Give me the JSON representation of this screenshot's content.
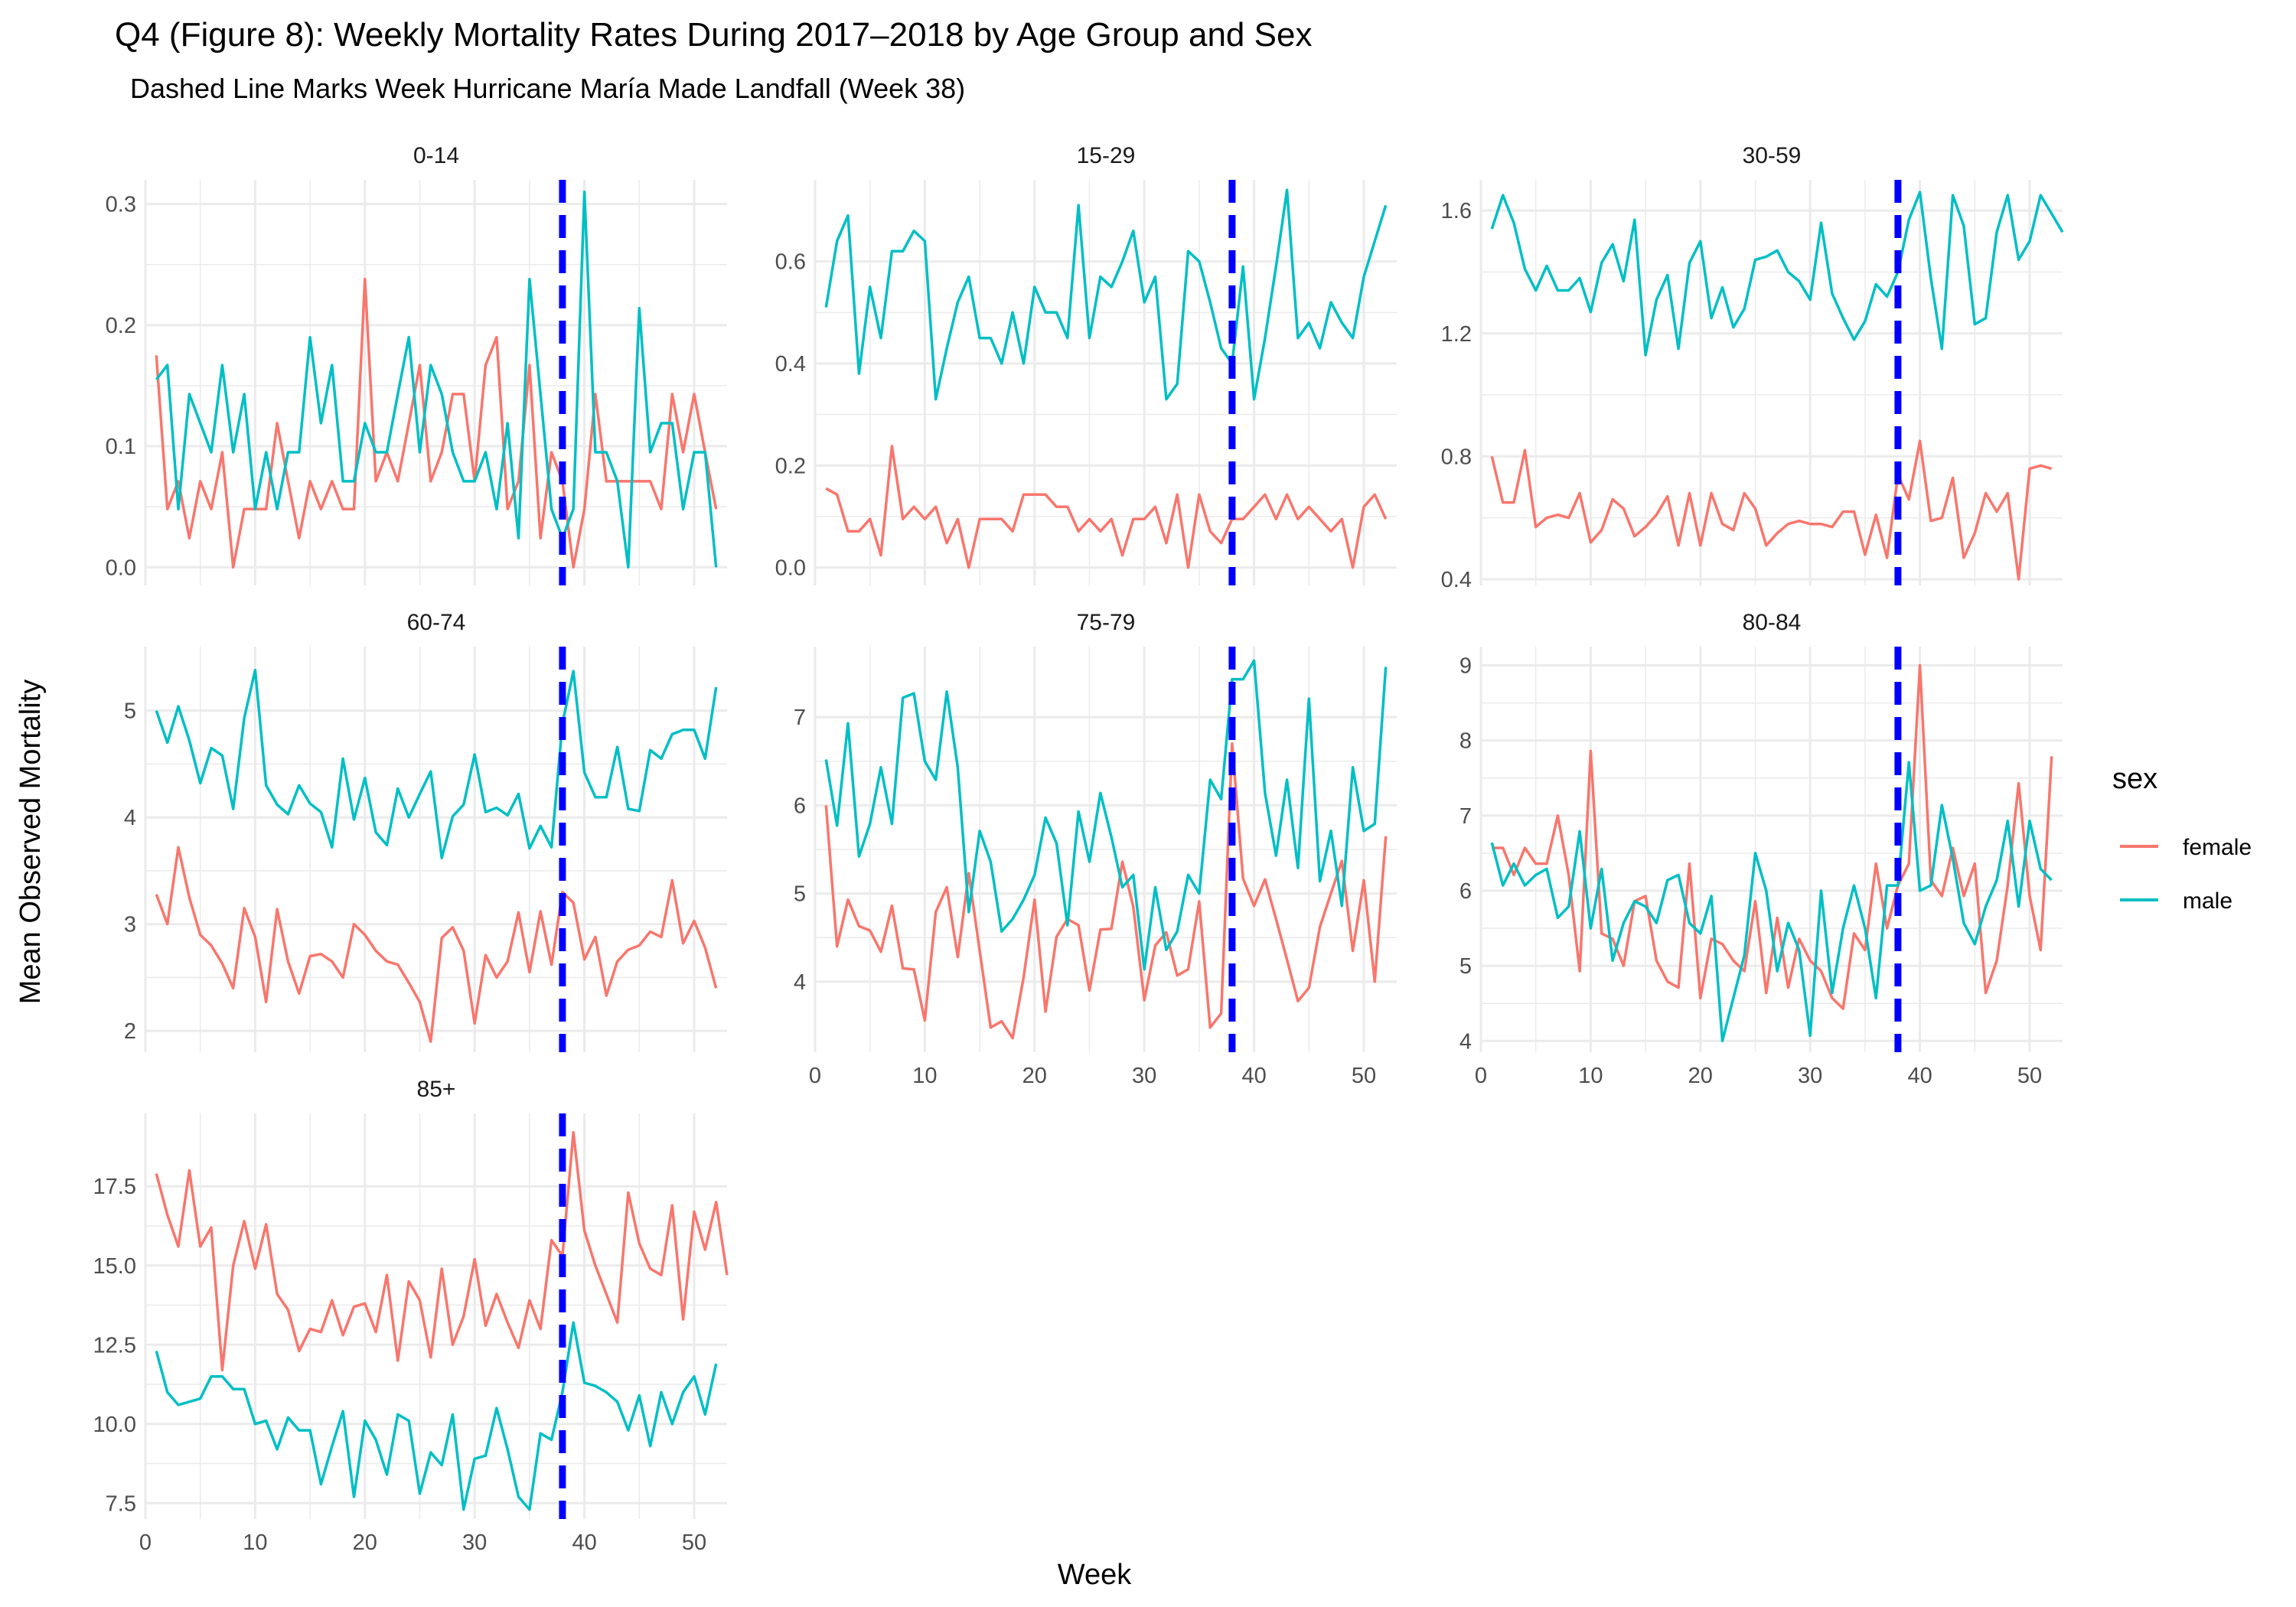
{
  "title": "Q4 (Figure 8): Weekly Mortality Rates During 2017–2018 by Age Group and Sex",
  "subtitle": "Dashed Line Marks Week Hurricane María Made Landfall (Week 38)",
  "xlabel": "Week",
  "ylabel": "Mean Observed Mortality",
  "legend": {
    "title": "sex",
    "items": [
      {
        "label": "female",
        "color": "#F8766D"
      },
      {
        "label": "male",
        "color": "#00BFC4"
      }
    ]
  },
  "colors": {
    "female": "#F8766D",
    "male": "#00BFC4",
    "marker": "#0000FF",
    "grid": "#EBEBEB"
  },
  "chart_data": {
    "type": "line",
    "facets_layout": "3 columns, free y scales",
    "legend_position": "right",
    "grid": true,
    "xlim": [
      0,
      53
    ],
    "x_ticks": [
      0,
      10,
      20,
      30,
      40,
      50
    ],
    "reference_line": {
      "x": 38,
      "style": "dashed",
      "color": "#0000FF"
    },
    "panels": [
      {
        "name": "0-14",
        "ylim": [
          -0.015,
          0.32
        ],
        "y_ticks": [
          0.0,
          0.1,
          0.2,
          0.3
        ],
        "y_tick_labels": [
          "0.0",
          "0.1",
          "0.2",
          "0.3"
        ],
        "series": [
          {
            "name": "female",
            "values": [
              0.175,
              0.048,
              0.071,
              0.024,
              0.071,
              0.048,
              0.095,
              0.0,
              0.048,
              0.048,
              0.048,
              0.119,
              0.071,
              0.024,
              0.071,
              0.048,
              0.071,
              0.048,
              0.048,
              0.238,
              0.071,
              0.095,
              0.071,
              0.119,
              0.167,
              0.071,
              0.095,
              0.143,
              0.143,
              0.071,
              0.167,
              0.19,
              0.048,
              0.071,
              0.167,
              0.024,
              0.095,
              0.071,
              0.0,
              0.048,
              0.143,
              0.071,
              0.071,
              0.071,
              0.071,
              0.071,
              0.048,
              0.143,
              0.095,
              0.143,
              0.095,
              0.048
            ]
          },
          {
            "name": "male",
            "values": [
              0.155,
              0.167,
              0.048,
              0.143,
              0.119,
              0.095,
              0.167,
              0.095,
              0.143,
              0.048,
              0.095,
              0.048,
              0.095,
              0.095,
              0.19,
              0.119,
              0.167,
              0.071,
              0.071,
              0.119,
              0.095,
              0.095,
              0.143,
              0.19,
              0.095,
              0.167,
              0.143,
              0.095,
              0.071,
              0.071,
              0.095,
              0.048,
              0.119,
              0.024,
              0.238,
              0.143,
              0.048,
              0.024,
              0.048,
              0.31,
              0.095,
              0.095,
              0.071,
              0.0,
              0.214,
              0.095,
              0.119,
              0.119,
              0.048,
              0.095,
              0.095,
              0.0
            ]
          }
        ]
      },
      {
        "name": "15-29",
        "ylim": [
          -0.035,
          0.76
        ],
        "y_ticks": [
          0.0,
          0.2,
          0.4,
          0.6
        ],
        "y_tick_labels": [
          "0.0",
          "0.2",
          "0.4",
          "0.6"
        ],
        "series": [
          {
            "name": "female",
            "values": [
              0.155,
              0.143,
              0.071,
              0.071,
              0.095,
              0.024,
              0.238,
              0.095,
              0.119,
              0.095,
              0.119,
              0.048,
              0.095,
              0.0,
              0.095,
              0.095,
              0.095,
              0.071,
              0.143,
              0.143,
              0.143,
              0.119,
              0.119,
              0.071,
              0.095,
              0.071,
              0.095,
              0.024,
              0.095,
              0.095,
              0.119,
              0.048,
              0.143,
              0.0,
              0.143,
              0.071,
              0.048,
              0.095,
              0.095,
              0.119,
              0.143,
              0.095,
              0.143,
              0.095,
              0.119,
              0.095,
              0.071,
              0.095,
              0.0,
              0.119,
              0.143,
              0.095
            ]
          },
          {
            "name": "male",
            "values": [
              0.51,
              0.64,
              0.69,
              0.38,
              0.55,
              0.45,
              0.62,
              0.62,
              0.66,
              0.64,
              0.33,
              0.43,
              0.52,
              0.57,
              0.45,
              0.45,
              0.4,
              0.5,
              0.4,
              0.55,
              0.5,
              0.5,
              0.45,
              0.71,
              0.45,
              0.57,
              0.55,
              0.6,
              0.66,
              0.52,
              0.57,
              0.33,
              0.36,
              0.62,
              0.6,
              0.52,
              0.43,
              0.4,
              0.59,
              0.33,
              0.45,
              0.59,
              0.74,
              0.45,
              0.48,
              0.43,
              0.52,
              0.48,
              0.45,
              0.57,
              0.64,
              0.71
            ]
          }
        ]
      },
      {
        "name": "30-59",
        "ylim": [
          0.38,
          1.7
        ],
        "y_ticks": [
          0.4,
          0.8,
          1.2,
          1.6
        ],
        "y_tick_labels": [
          "0.4",
          "0.8",
          "1.2",
          "1.6"
        ],
        "series": [
          {
            "name": "female",
            "values": [
              0.8,
              0.65,
              0.65,
              0.82,
              0.57,
              0.6,
              0.61,
              0.6,
              0.68,
              0.52,
              0.56,
              0.66,
              0.63,
              0.54,
              0.57,
              0.61,
              0.67,
              0.51,
              0.68,
              0.51,
              0.68,
              0.58,
              0.56,
              0.68,
              0.63,
              0.51,
              0.55,
              0.58,
              0.59,
              0.58,
              0.58,
              0.57,
              0.62,
              0.62,
              0.48,
              0.61,
              0.47,
              0.74,
              0.66,
              0.85,
              0.59,
              0.6,
              0.73,
              0.47,
              0.55,
              0.68,
              0.62,
              0.68,
              0.4,
              0.76,
              0.77,
              0.76
            ]
          },
          {
            "name": "male",
            "values": [
              1.54,
              1.65,
              1.56,
              1.41,
              1.34,
              1.42,
              1.34,
              1.34,
              1.38,
              1.27,
              1.43,
              1.49,
              1.37,
              1.57,
              1.13,
              1.31,
              1.39,
              1.15,
              1.43,
              1.5,
              1.25,
              1.35,
              1.22,
              1.28,
              1.44,
              1.45,
              1.47,
              1.4,
              1.37,
              1.31,
              1.56,
              1.33,
              1.25,
              1.18,
              1.24,
              1.36,
              1.32,
              1.4,
              1.57,
              1.66,
              1.38,
              1.15,
              1.65,
              1.55,
              1.23,
              1.25,
              1.53,
              1.65,
              1.44,
              1.5,
              1.65,
              1.59,
              1.53
            ]
          }
        ]
      },
      {
        "name": "60-74",
        "ylim": [
          1.8,
          5.6
        ],
        "y_ticks": [
          2,
          3,
          4,
          5
        ],
        "y_tick_labels": [
          "2",
          "3",
          "4",
          "5"
        ],
        "series": [
          {
            "name": "female",
            "values": [
              3.28,
              3.0,
              3.72,
              3.25,
              2.9,
              2.8,
              2.63,
              2.4,
              3.15,
              2.88,
              2.27,
              3.14,
              2.65,
              2.35,
              2.7,
              2.72,
              2.65,
              2.5,
              3.0,
              2.9,
              2.75,
              2.65,
              2.62,
              2.45,
              2.27,
              1.9,
              2.87,
              2.97,
              2.75,
              2.07,
              2.71,
              2.5,
              2.65,
              3.11,
              2.55,
              3.12,
              2.62,
              3.3,
              3.2,
              2.67,
              2.88,
              2.33,
              2.65,
              2.76,
              2.8,
              2.93,
              2.88,
              3.41,
              2.82,
              3.03,
              2.78,
              2.4
            ]
          },
          {
            "name": "male",
            "values": [
              5.0,
              4.7,
              5.04,
              4.72,
              4.32,
              4.65,
              4.58,
              4.08,
              4.93,
              5.38,
              4.3,
              4.12,
              4.03,
              4.3,
              4.13,
              4.05,
              3.72,
              4.55,
              3.98,
              4.37,
              3.86,
              3.74,
              4.27,
              4.0,
              4.22,
              4.43,
              3.62,
              4.01,
              4.12,
              4.59,
              4.05,
              4.09,
              4.02,
              4.22,
              3.71,
              3.92,
              3.72,
              4.88,
              5.37,
              4.42,
              4.19,
              4.19,
              4.66,
              4.08,
              4.06,
              4.63,
              4.55,
              4.78,
              4.82,
              4.82,
              4.55,
              5.22
            ]
          }
        ]
      },
      {
        "name": "75-79",
        "ylim": [
          3.2,
          7.8
        ],
        "y_ticks": [
          4,
          5,
          6,
          7
        ],
        "y_tick_labels": [
          "4",
          "5",
          "6",
          "7"
        ],
        "series": [
          {
            "name": "female",
            "values": [
              6.0,
              4.4,
              4.93,
              4.63,
              4.58,
              4.34,
              4.86,
              4.15,
              4.14,
              3.56,
              4.79,
              5.07,
              4.28,
              5.23,
              4.35,
              3.48,
              3.55,
              3.36,
              4.05,
              4.93,
              3.66,
              4.51,
              4.71,
              4.64,
              3.9,
              4.59,
              4.6,
              5.36,
              4.85,
              3.79,
              4.41,
              4.56,
              4.07,
              4.14,
              4.91,
              3.48,
              3.64,
              6.7,
              5.17,
              4.86,
              5.16,
              4.71,
              4.25,
              3.78,
              3.93,
              4.62,
              5.0,
              5.37,
              4.35,
              5.15,
              4.0,
              5.65
            ]
          },
          {
            "name": "male",
            "values": [
              6.52,
              5.77,
              6.93,
              5.42,
              5.79,
              6.43,
              5.79,
              7.22,
              7.27,
              6.5,
              6.29,
              7.29,
              6.43,
              4.79,
              5.71,
              5.36,
              4.57,
              4.71,
              4.93,
              5.21,
              5.86,
              5.57,
              4.64,
              5.93,
              5.36,
              6.14,
              5.64,
              5.07,
              5.21,
              4.14,
              5.07,
              4.36,
              4.57,
              5.21,
              5.0,
              6.29,
              6.07,
              7.43,
              7.43,
              7.64,
              6.14,
              5.43,
              6.29,
              5.29,
              7.21,
              5.14,
              5.71,
              4.86,
              6.43,
              5.71,
              5.79,
              7.57
            ]
          }
        ]
      },
      {
        "name": "80-84",
        "ylim": [
          3.85,
          9.25
        ],
        "y_ticks": [
          4,
          5,
          6,
          7,
          8,
          9
        ],
        "y_tick_labels": [
          "4",
          "5",
          "6",
          "7",
          "8",
          "9"
        ],
        "series": [
          {
            "name": "female",
            "values": [
              6.57,
              6.57,
              6.21,
              6.57,
              6.36,
              6.36,
              7.0,
              6.21,
              4.93,
              7.86,
              5.43,
              5.36,
              5.0,
              5.86,
              5.93,
              5.07,
              4.79,
              4.71,
              6.36,
              4.57,
              5.36,
              5.29,
              5.07,
              4.93,
              5.86,
              4.64,
              5.64,
              4.71,
              5.36,
              5.07,
              4.93,
              4.57,
              4.43,
              5.43,
              5.21,
              6.36,
              5.5,
              6.07,
              6.36,
              9.0,
              6.14,
              5.93,
              6.57,
              5.93,
              6.36,
              4.64,
              5.07,
              6.07,
              7.43,
              5.93,
              5.21,
              7.79
            ]
          },
          {
            "name": "male",
            "values": [
              6.64,
              6.07,
              6.36,
              6.07,
              6.21,
              6.29,
              5.64,
              5.79,
              6.79,
              5.5,
              6.29,
              5.07,
              5.57,
              5.86,
              5.79,
              5.57,
              6.14,
              6.21,
              5.57,
              5.43,
              5.93,
              4.0,
              4.57,
              5.14,
              6.5,
              6.0,
              4.93,
              5.57,
              5.21,
              4.07,
              6.0,
              4.64,
              5.5,
              6.07,
              5.5,
              4.57,
              6.07,
              6.07,
              7.71,
              6.0,
              6.07,
              7.14,
              6.43,
              5.57,
              5.29,
              5.79,
              6.14,
              6.93,
              5.79,
              6.93,
              6.29,
              6.14
            ]
          }
        ]
      },
      {
        "name": "85+",
        "ylim": [
          7.0,
          19.8
        ],
        "y_ticks": [
          7.5,
          10.0,
          12.5,
          15.0,
          17.5
        ],
        "y_tick_labels": [
          "7.5",
          "10.0",
          "12.5",
          "15.0",
          "17.5"
        ],
        "series": [
          {
            "name": "female",
            "values": [
              17.9,
              16.6,
              15.6,
              18.0,
              15.6,
              16.2,
              11.7,
              15.0,
              16.4,
              14.9,
              16.3,
              14.1,
              13.6,
              12.3,
              13.0,
              12.9,
              13.9,
              12.8,
              13.7,
              13.8,
              12.9,
              14.7,
              12.0,
              14.5,
              13.9,
              12.1,
              14.9,
              12.5,
              13.4,
              15.2,
              13.1,
              14.1,
              13.2,
              12.4,
              13.9,
              13.0,
              15.8,
              15.3,
              19.2,
              16.1,
              15.0,
              14.1,
              13.2,
              17.3,
              15.7,
              14.9,
              14.7,
              16.9,
              13.3,
              16.7,
              15.5,
              17.0,
              14.7
            ]
          },
          {
            "name": "male",
            "values": [
              12.3,
              11.0,
              10.6,
              10.7,
              10.8,
              11.5,
              11.5,
              11.1,
              11.1,
              10.0,
              10.1,
              9.2,
              10.2,
              9.8,
              9.8,
              8.1,
              9.3,
              10.4,
              7.7,
              10.1,
              9.5,
              8.4,
              10.3,
              10.1,
              7.8,
              9.1,
              8.7,
              10.3,
              7.3,
              8.9,
              9.0,
              10.5,
              9.2,
              7.7,
              7.3,
              9.7,
              9.5,
              11.0,
              13.2,
              11.3,
              11.2,
              11.0,
              10.7,
              9.8,
              10.9,
              9.3,
              11.0,
              10.0,
              11.0,
              11.5,
              10.3,
              11.9
            ]
          }
        ]
      }
    ]
  }
}
